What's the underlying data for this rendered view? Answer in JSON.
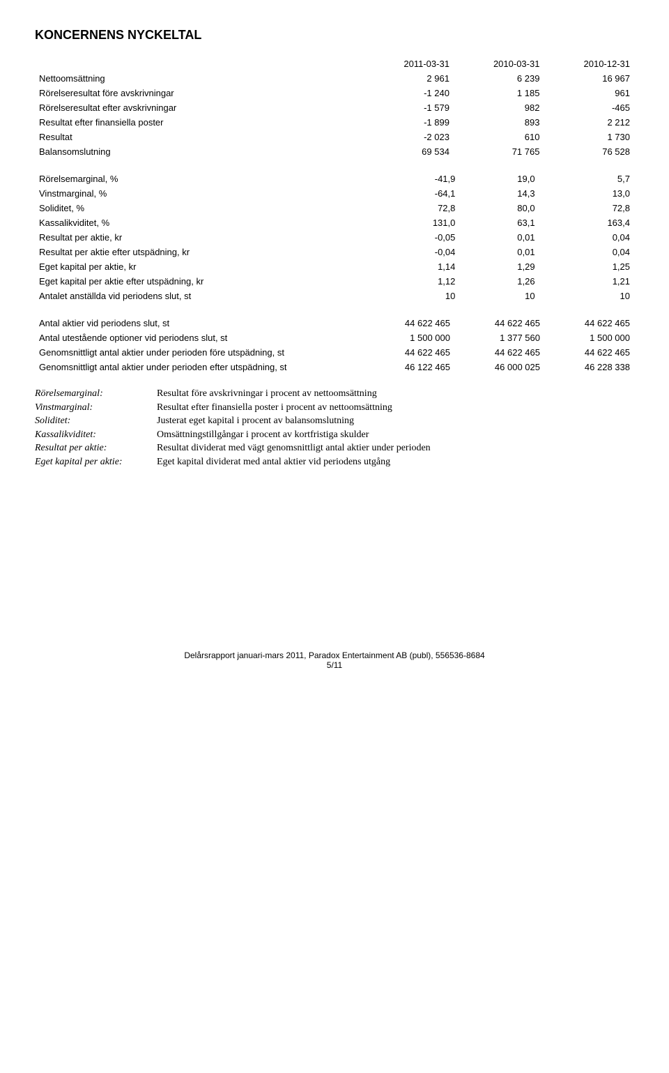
{
  "title": "KONCERNENS NYCKELTAL",
  "columns": [
    "",
    "2011-03-31",
    "2010-03-31",
    "2010-12-31"
  ],
  "section1": [
    {
      "label": "Nettoomsättning",
      "c1": "2 961",
      "c2": "6 239",
      "c3": "16 967"
    },
    {
      "label": "Rörelseresultat före avskrivningar",
      "c1": "-1 240",
      "c2": "1 185",
      "c3": "961"
    },
    {
      "label": "Rörelseresultat efter avskrivningar",
      "c1": "-1 579",
      "c2": "982",
      "c3": "-465"
    },
    {
      "label": "Resultat efter finansiella poster",
      "c1": "-1 899",
      "c2": "893",
      "c3": "2 212"
    },
    {
      "label": "Resultat",
      "c1": "-2 023",
      "c2": "610",
      "c3": "1 730"
    },
    {
      "label": "Balansomslutning",
      "c1": "69 534",
      "c2": "71 765",
      "c3": "76 528"
    }
  ],
  "section2": [
    {
      "label": "Rörelsemarginal, %",
      "c1": "-41,9",
      "c2": "19,0",
      "c3": "5,7"
    },
    {
      "label": "Vinstmarginal, %",
      "c1": "-64,1",
      "c2": "14,3",
      "c3": "13,0"
    },
    {
      "label": "Soliditet, %",
      "c1": "72,8",
      "c2": "80,0",
      "c3": "72,8"
    },
    {
      "label": "Kassalikviditet, %",
      "c1": "131,0",
      "c2": "63,1",
      "c3": "163,4"
    },
    {
      "label": "Resultat per aktie, kr",
      "c1": "-0,05",
      "c2": "0,01",
      "c3": "0,04"
    },
    {
      "label": "Resultat per aktie efter utspädning, kr",
      "c1": "-0,04",
      "c2": "0,01",
      "c3": "0,04"
    },
    {
      "label": "Eget kapital per aktie, kr",
      "c1": "1,14",
      "c2": "1,29",
      "c3": "1,25"
    },
    {
      "label": "Eget kapital per aktie efter utspädning, kr",
      "c1": "1,12",
      "c2": "1,26",
      "c3": "1,21"
    },
    {
      "label": "Antalet anställda vid periodens slut, st",
      "c1": "10",
      "c2": "10",
      "c3": "10"
    }
  ],
  "section3": [
    {
      "label": "Antal aktier vid periodens slut, st",
      "c1": "44 622 465",
      "c2": "44 622 465",
      "c3": "44 622 465"
    },
    {
      "label": "Antal utestående optioner vid periodens slut, st",
      "c1": "1 500 000",
      "c2": "1 377 560",
      "c3": "1 500 000"
    },
    {
      "label": "Genomsnittligt antal aktier under perioden före utspädning, st",
      "c1": "44 622 465",
      "c2": "44 622 465",
      "c3": "44 622 465"
    },
    {
      "label": "Genomsnittligt antal aktier under perioden efter utspädning, st",
      "c1": "46 122 465",
      "c2": "46 000 025",
      "c3": "46 228 338"
    }
  ],
  "definitions": [
    {
      "term": "Rörelsemarginal:",
      "def": "Resultat före avskrivningar i procent av nettoomsättning"
    },
    {
      "term": "Vinstmarginal:",
      "def": "Resultat efter finansiella poster i procent av nettoomsättning"
    },
    {
      "term": "Soliditet:",
      "def": "Justerat eget kapital i procent av balansomslutning"
    },
    {
      "term": "Kassalikviditet:",
      "def": "Omsättningstillgångar i procent av kortfristiga skulder"
    },
    {
      "term": "Resultat per aktie:",
      "def": "Resultat dividerat med vägt genomsnittligt antal aktier under perioden"
    },
    {
      "term": "Eget kapital per aktie:",
      "def": "Eget kapital dividerat med antal aktier vid periodens utgång"
    }
  ],
  "footer": {
    "line1": "Delårsrapport januari-mars 2011, Paradox Entertainment AB (publ), 556536-8684",
    "line2": "5/11"
  }
}
